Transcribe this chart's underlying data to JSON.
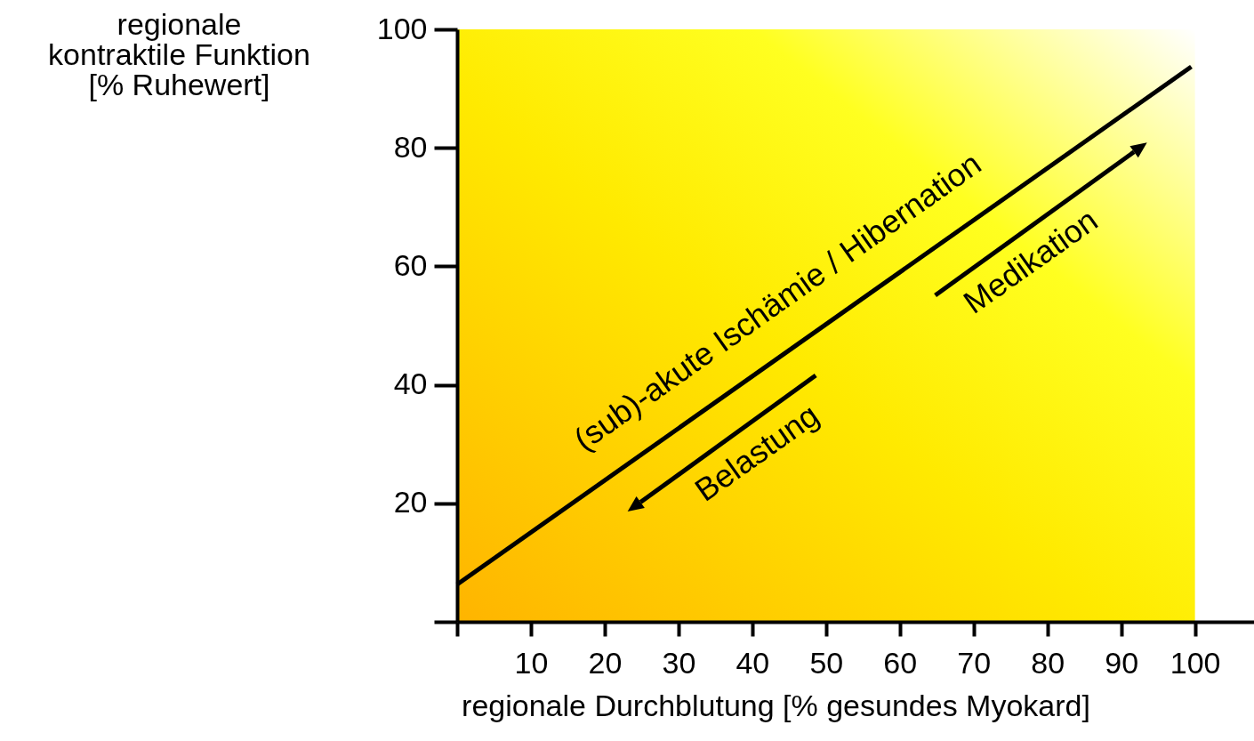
{
  "chart_data": {
    "type": "line",
    "xlabel": "regionale Durchblutung [% gesundes Myokard]",
    "ylabel": "regionale\nkontraktile Funktion\n[% Ruhewert]",
    "series": [
      {
        "color": "#000000",
        "x": [
          0,
          99.5
        ],
        "values": [
          6.3,
          93.7
        ]
      }
    ],
    "xlim": [
      0,
      108
    ],
    "ylim": [
      0,
      100
    ],
    "xticks": [
      {
        "value": 0,
        "label": null
      },
      10,
      20,
      30,
      40,
      50,
      60,
      70,
      80,
      90,
      100
    ],
    "yticks": [
      {
        "value": 0,
        "label": null
      },
      20,
      40,
      60,
      80,
      100
    ],
    "grid": false,
    "marker": "none",
    "line_style": "solid",
    "annotations": [
      "(sub)-akute Ischämie / Hibernation",
      "Belastung",
      "Medikation"
    ]
  }
}
